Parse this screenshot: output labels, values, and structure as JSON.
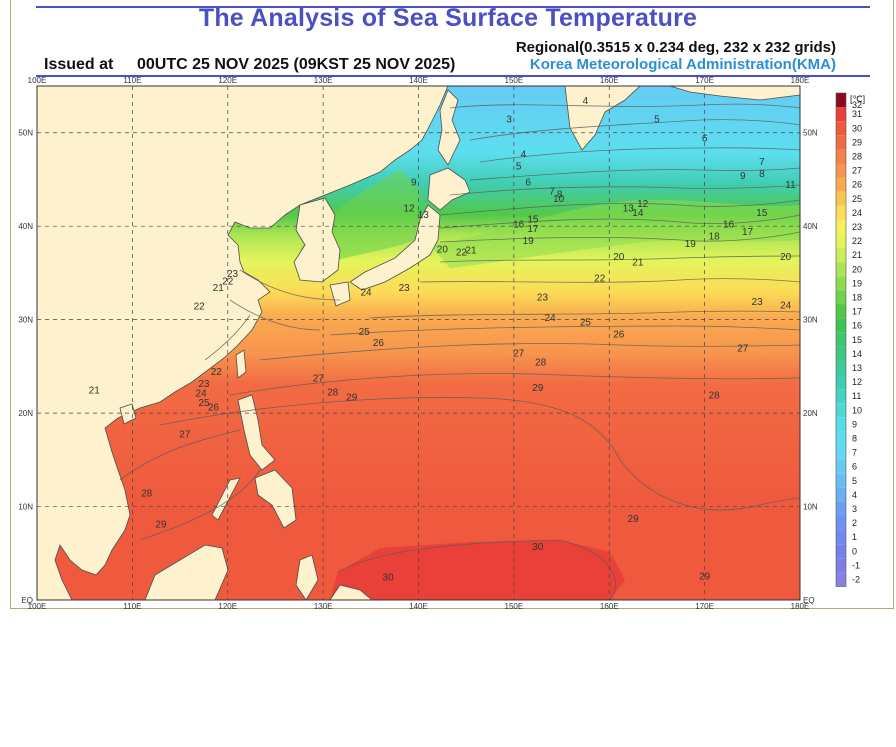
{
  "header": {
    "title": "The Analysis of Sea Surface Temperature",
    "issued_label": "Issued at",
    "issued_value": "00UTC 25 NOV 2025 (09KST 25 NOV 2025)",
    "regional": "Regional(0.3515 x 0.234 deg, 232 x 232 grids)",
    "agency": "Korea Meteorological Administration(KMA)"
  },
  "map": {
    "lon_labels": [
      "100E",
      "110E",
      "120E",
      "130E",
      "140E",
      "150E",
      "160E",
      "170E",
      "180E"
    ],
    "lat_labels": [
      "EQ",
      "10N",
      "20N",
      "30N",
      "40N",
      "50N"
    ],
    "lon_range": [
      100,
      180
    ],
    "lat_range": [
      0,
      55
    ],
    "grid": true
  },
  "legend": {
    "unit": "[℃]",
    "levels": [
      {
        "v": "32",
        "c": "#8b0a1e"
      },
      {
        "v": "31",
        "c": "#e9403a"
      },
      {
        "v": "30",
        "c": "#ef5a3e"
      },
      {
        "v": "29",
        "c": "#f26b44"
      },
      {
        "v": "28",
        "c": "#f58049"
      },
      {
        "v": "27",
        "c": "#f7954e"
      },
      {
        "v": "26",
        "c": "#f9aa4f"
      },
      {
        "v": "25",
        "c": "#fbc352"
      },
      {
        "v": "24",
        "c": "#fcdc58"
      },
      {
        "v": "23",
        "c": "#f7ef5b"
      },
      {
        "v": "22",
        "c": "#e4f45c"
      },
      {
        "v": "21",
        "c": "#c8ee58"
      },
      {
        "v": "20",
        "c": "#abe553"
      },
      {
        "v": "19",
        "c": "#8ddc4f"
      },
      {
        "v": "18",
        "c": "#6fd24b"
      },
      {
        "v": "17",
        "c": "#52c849"
      },
      {
        "v": "16",
        "c": "#3fc454"
      },
      {
        "v": "15",
        "c": "#3fc56b"
      },
      {
        "v": "14",
        "c": "#3ec784"
      },
      {
        "v": "13",
        "c": "#3fca9c"
      },
      {
        "v": "12",
        "c": "#40cdb1"
      },
      {
        "v": "11",
        "c": "#46d3c6"
      },
      {
        "v": "10",
        "c": "#4dd8d8"
      },
      {
        "v": "9",
        "c": "#55dde6"
      },
      {
        "v": "8",
        "c": "#5ddeef"
      },
      {
        "v": "7",
        "c": "#63d8f2"
      },
      {
        "v": "6",
        "c": "#66cbf3"
      },
      {
        "v": "5",
        "c": "#68bdf4"
      },
      {
        "v": "4",
        "c": "#6aaef4"
      },
      {
        "v": "3",
        "c": "#6c9ff4"
      },
      {
        "v": "2",
        "c": "#6e92f2"
      },
      {
        "v": "1",
        "c": "#7088ef"
      },
      {
        "v": "0",
        "c": "#7681ea"
      },
      {
        "v": "-1",
        "c": "#7e7ee6"
      },
      {
        "v": "-2",
        "c": "#8a7fe3"
      }
    ]
  },
  "contour_labels": [
    {
      "t": "4",
      "lon": 157.5,
      "lat": 53.5
    },
    {
      "t": "5",
      "lon": 165,
      "lat": 51.5
    },
    {
      "t": "6",
      "lon": 170,
      "lat": 49.5
    },
    {
      "t": "7",
      "lon": 176,
      "lat": 47
    },
    {
      "t": "8",
      "lon": 176,
      "lat": 45.7
    },
    {
      "t": "9",
      "lon": 174,
      "lat": 45.5
    },
    {
      "t": "11",
      "lon": 179,
      "lat": 44.5
    },
    {
      "t": "3",
      "lon": 149.5,
      "lat": 51.5
    },
    {
      "t": "4",
      "lon": 151,
      "lat": 47.8
    },
    {
      "t": "5",
      "lon": 150.5,
      "lat": 46.5
    },
    {
      "t": "6",
      "lon": 151.5,
      "lat": 44.8
    },
    {
      "t": "7",
      "lon": 154,
      "lat": 43.8
    },
    {
      "t": "8",
      "lon": 154.8,
      "lat": 43.5
    },
    {
      "t": "10",
      "lon": 154.7,
      "lat": 43
    },
    {
      "t": "13",
      "lon": 162,
      "lat": 42
    },
    {
      "t": "14",
      "lon": 163,
      "lat": 41.5
    },
    {
      "t": "12",
      "lon": 163.5,
      "lat": 42.5
    },
    {
      "t": "15",
      "lon": 176,
      "lat": 41.5
    },
    {
      "t": "16",
      "lon": 172.5,
      "lat": 40.3
    },
    {
      "t": "17",
      "lon": 174.5,
      "lat": 39.5
    },
    {
      "t": "18",
      "lon": 171,
      "lat": 39
    },
    {
      "t": "19",
      "lon": 168.5,
      "lat": 38.2
    },
    {
      "t": "20",
      "lon": 178.5,
      "lat": 36.8
    },
    {
      "t": "15",
      "lon": 152,
      "lat": 40.8
    },
    {
      "t": "16",
      "lon": 150.5,
      "lat": 40.3
    },
    {
      "t": "17",
      "lon": 152,
      "lat": 39.8
    },
    {
      "t": "19",
      "lon": 151.5,
      "lat": 38.5
    },
    {
      "t": "20",
      "lon": 161,
      "lat": 36.8
    },
    {
      "t": "21",
      "lon": 163,
      "lat": 36.2
    },
    {
      "t": "22",
      "lon": 159,
      "lat": 34.5
    },
    {
      "t": "20",
      "lon": 142.5,
      "lat": 37.6
    },
    {
      "t": "22",
      "lon": 144.5,
      "lat": 37.3
    },
    {
      "t": "21",
      "lon": 145.5,
      "lat": 37.5
    },
    {
      "t": "9",
      "lon": 139.5,
      "lat": 44.8
    },
    {
      "t": "12",
      "lon": 139,
      "lat": 42
    },
    {
      "t": "13",
      "lon": 140.5,
      "lat": 41.3
    },
    {
      "t": "23",
      "lon": 153,
      "lat": 32.5
    },
    {
      "t": "23",
      "lon": 175.5,
      "lat": 32
    },
    {
      "t": "24",
      "lon": 178.5,
      "lat": 31.6
    },
    {
      "t": "24",
      "lon": 153.8,
      "lat": 30.3
    },
    {
      "t": "25",
      "lon": 157.5,
      "lat": 29.8
    },
    {
      "t": "26",
      "lon": 161,
      "lat": 28.5
    },
    {
      "t": "27",
      "lon": 174,
      "lat": 27
    },
    {
      "t": "23",
      "lon": 138.5,
      "lat": 33.5
    },
    {
      "t": "24",
      "lon": 134.5,
      "lat": 33
    },
    {
      "t": "25",
      "lon": 134.3,
      "lat": 28.8
    },
    {
      "t": "26",
      "lon": 135.8,
      "lat": 27.6
    },
    {
      "t": "27",
      "lon": 150.5,
      "lat": 26.5
    },
    {
      "t": "28",
      "lon": 152.8,
      "lat": 25.5
    },
    {
      "t": "29",
      "lon": 152.5,
      "lat": 22.8
    },
    {
      "t": "28",
      "lon": 171,
      "lat": 22
    },
    {
      "t": "27",
      "lon": 129.5,
      "lat": 23.8
    },
    {
      "t": "28",
      "lon": 131,
      "lat": 22.3
    },
    {
      "t": "29",
      "lon": 133,
      "lat": 21.8
    },
    {
      "t": "21",
      "lon": 106,
      "lat": 22.5
    },
    {
      "t": "22",
      "lon": 117,
      "lat": 31.5
    },
    {
      "t": "21",
      "lon": 119,
      "lat": 33.5
    },
    {
      "t": "22",
      "lon": 120,
      "lat": 34.2
    },
    {
      "t": "23",
      "lon": 120.5,
      "lat": 35
    },
    {
      "t": "22",
      "lon": 118.8,
      "lat": 24.5
    },
    {
      "t": "23",
      "lon": 117.5,
      "lat": 23.2
    },
    {
      "t": "24",
      "lon": 117.2,
      "lat": 22.2
    },
    {
      "t": "25",
      "lon": 117.5,
      "lat": 21.2
    },
    {
      "t": "26",
      "lon": 118.5,
      "lat": 20.7
    },
    {
      "t": "27",
      "lon": 115.5,
      "lat": 17.8
    },
    {
      "t": "28",
      "lon": 111.5,
      "lat": 11.5
    },
    {
      "t": "29",
      "lon": 113,
      "lat": 8.2
    },
    {
      "t": "29",
      "lon": 162.5,
      "lat": 8.8
    },
    {
      "t": "30",
      "lon": 152.5,
      "lat": 5.8
    },
    {
      "t": "30",
      "lon": 136.8,
      "lat": 2.5
    },
    {
      "t": "29",
      "lon": 170,
      "lat": 2.6
    }
  ]
}
